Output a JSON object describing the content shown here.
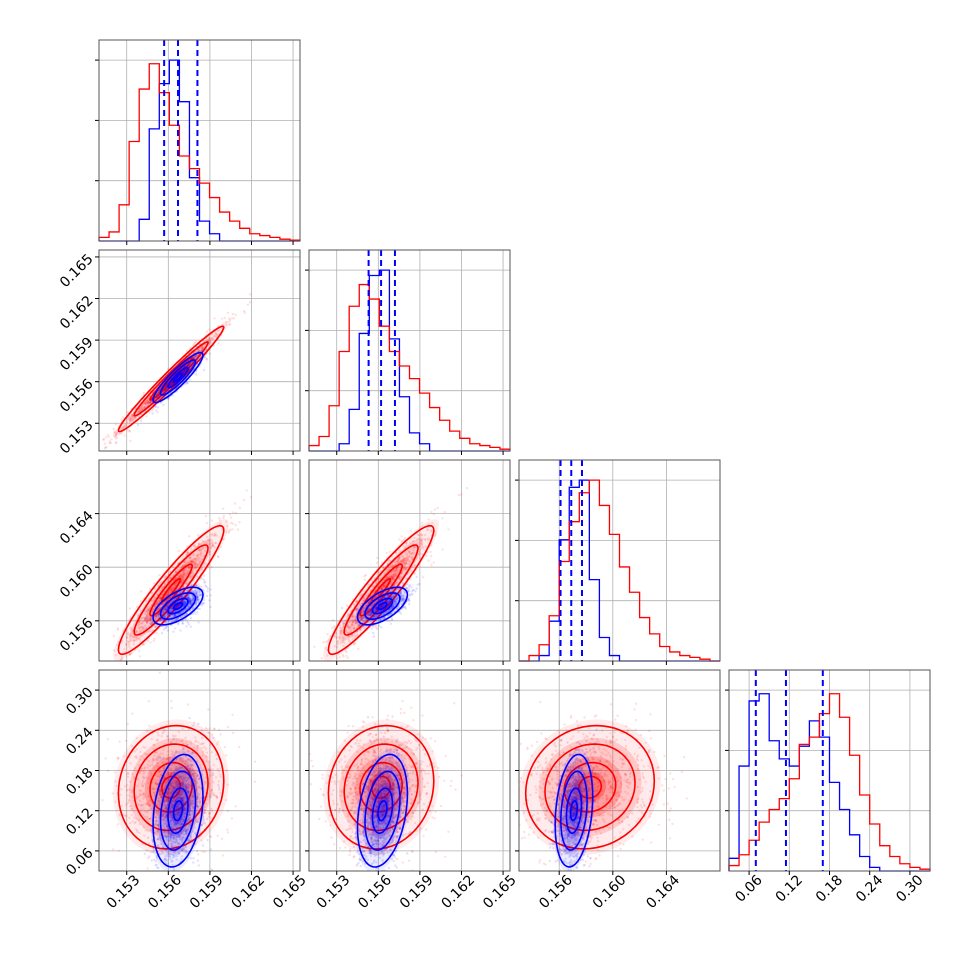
{
  "chart_data": {
    "type": "corner",
    "grid": true,
    "colors": {
      "blue": "#0000ff",
      "red": "#ff0000"
    },
    "parameters": [
      {
        "range": [
          0.151,
          0.1655
        ],
        "ticks": [
          0.153,
          0.156,
          0.159,
          0.162,
          0.165
        ]
      },
      {
        "range": [
          0.151,
          0.1655
        ],
        "ticks": [
          0.153,
          0.156,
          0.159,
          0.162,
          0.165
        ]
      },
      {
        "range": [
          0.153,
          0.168
        ],
        "ticks": [
          0.156,
          0.16,
          0.164
        ]
      },
      {
        "range": [
          0.03,
          0.33
        ],
        "ticks": [
          0.06,
          0.12,
          0.18,
          0.24,
          0.3
        ]
      }
    ],
    "tick_labels": {
      "p0": [
        "0.153",
        "0.156",
        "0.159",
        "0.162",
        "0.165"
      ],
      "p1": [
        "0.153",
        "0.156",
        "0.159",
        "0.162",
        "0.165"
      ],
      "p2": [
        "0.156",
        "0.160",
        "0.164"
      ],
      "p3": [
        "0.06",
        "0.12",
        "0.18",
        "0.24",
        "0.30"
      ]
    },
    "quantiles_blue": [
      [
        0.1557,
        0.1567,
        0.1581
      ],
      [
        0.1553,
        0.1562,
        0.1572
      ],
      [
        0.1561,
        0.1569,
        0.1577
      ],
      [
        0.07,
        0.115,
        0.17
      ]
    ],
    "histograms": [
      {
        "bins": [
          0.151,
          0.1655,
          20
        ],
        "blue": [
          0,
          0,
          0,
          0,
          0.12,
          0.62,
          0.87,
          1.0,
          0.77,
          0.35,
          0.11,
          0.04,
          0,
          0,
          0,
          0,
          0,
          0,
          0,
          0
        ],
        "red": [
          0.02,
          0.05,
          0.2,
          0.55,
          0.84,
          0.98,
          0.82,
          0.64,
          0.47,
          0.4,
          0.32,
          0.24,
          0.16,
          0.11,
          0.07,
          0.04,
          0.03,
          0.02,
          0.01,
          0.005
        ]
      },
      {
        "bins": [
          0.151,
          0.1655,
          20
        ],
        "blue": [
          0,
          0,
          0,
          0.04,
          0.23,
          0.65,
          0.97,
          1.0,
          0.62,
          0.3,
          0.1,
          0.04,
          0,
          0,
          0,
          0,
          0,
          0,
          0,
          0
        ],
        "red": [
          0.03,
          0.08,
          0.25,
          0.55,
          0.8,
          0.92,
          0.84,
          0.69,
          0.55,
          0.47,
          0.4,
          0.32,
          0.24,
          0.17,
          0.11,
          0.07,
          0.04,
          0.03,
          0.02,
          0.01
        ]
      },
      {
        "bins": [
          0.153,
          0.168,
          20
        ],
        "blue": [
          0,
          0,
          0.03,
          0.22,
          0.67,
          0.96,
          1.0,
          0.45,
          0.13,
          0.03,
          0,
          0,
          0,
          0,
          0,
          0,
          0,
          0,
          0,
          0
        ],
        "red": [
          0,
          0.03,
          0.09,
          0.25,
          0.55,
          0.77,
          0.93,
          1.0,
          0.86,
          0.7,
          0.52,
          0.38,
          0.24,
          0.15,
          0.08,
          0.05,
          0.03,
          0.02,
          0.01,
          0
        ],
        "highlight": 0.9
      },
      {
        "bins": [
          0.03,
          0.33,
          20
        ],
        "blue": [
          0.07,
          0.58,
          0.94,
          0.98,
          0.72,
          0.62,
          0.58,
          0.69,
          0.83,
          0.74,
          0.49,
          0.34,
          0.2,
          0.08,
          0.02,
          0,
          0,
          0,
          0,
          0
        ],
        "red": [
          0.03,
          0.09,
          0.17,
          0.27,
          0.34,
          0.4,
          0.51,
          0.7,
          0.74,
          0.87,
          0.98,
          0.85,
          0.64,
          0.42,
          0.26,
          0.14,
          0.08,
          0.04,
          0.02,
          0.01
        ]
      }
    ],
    "joint": {
      "blue": {
        "mean": [
          0.1567,
          0.1563,
          0.1571,
          0.12
        ],
        "sd": [
          0.0009,
          0.0009,
          0.0007,
          0.042
        ],
        "corr": [
          [
            1,
            0.9,
            0.6,
            0.25
          ],
          [
            0.9,
            1,
            0.6,
            0.3
          ],
          [
            0.6,
            0.6,
            1,
            0.25
          ],
          [
            0.25,
            0.3,
            0.25,
            1
          ]
        ]
      },
      "red": {
        "mean": [
          0.1562,
          0.1562,
          0.1583,
          0.155
        ],
        "sd": [
          0.0019,
          0.0019,
          0.0024,
          0.046
        ],
        "corr": [
          [
            1,
            0.98,
            0.93,
            0.1
          ],
          [
            0.98,
            1,
            0.93,
            0.1
          ],
          [
            0.93,
            0.93,
            1,
            0.1
          ],
          [
            0.1,
            0.1,
            0.1,
            1
          ]
        ]
      }
    }
  }
}
